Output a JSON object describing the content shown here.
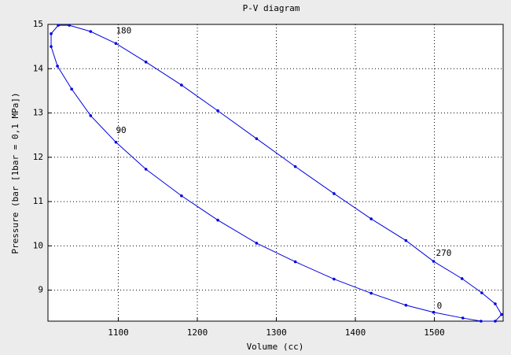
{
  "chart_data": {
    "type": "line",
    "title": "P-V diagram",
    "x_label": "Volume (cc)",
    "y_label": "Pressure (bar [1bar = 0,1 MPa])",
    "xlim": [
      1011,
      1587
    ],
    "ylim": [
      8.3,
      15
    ],
    "xticks": [
      1100,
      1200,
      1300,
      1400,
      1500
    ],
    "yticks": [
      9,
      10,
      11,
      12,
      13,
      14,
      15
    ],
    "grid": true,
    "series": [
      {
        "color": "#0000e0",
        "x": [
          1499,
          1536,
          1559,
          1577,
          1585,
          1577,
          1560,
          1535,
          1499,
          1464,
          1420,
          1373,
          1324,
          1275,
          1226,
          1180,
          1135,
          1097,
          1065,
          1038,
          1024,
          1015,
          1015,
          1023,
          1041,
          1065,
          1097,
          1135,
          1180,
          1226,
          1275,
          1324,
          1373,
          1420,
          1464,
          1499
        ],
        "values": [
          8.5,
          8.37,
          8.3,
          8.3,
          8.45,
          8.69,
          8.94,
          9.26,
          9.65,
          10.12,
          10.61,
          11.18,
          11.79,
          12.42,
          13.05,
          13.63,
          14.15,
          14.57,
          14.84,
          14.98,
          14.98,
          14.79,
          14.5,
          14.06,
          13.54,
          12.94,
          12.34,
          11.73,
          11.13,
          10.58,
          10.06,
          9.64,
          9.25,
          8.93,
          8.66,
          8.5
        ]
      }
    ],
    "annotations": [
      {
        "text": "0",
        "x": 1503,
        "y": 8.64
      },
      {
        "text": "90",
        "x": 1097,
        "y": 12.6
      },
      {
        "text": "180",
        "x": 1097,
        "y": 14.85
      },
      {
        "text": "270",
        "x": 1502,
        "y": 9.83
      }
    ]
  }
}
